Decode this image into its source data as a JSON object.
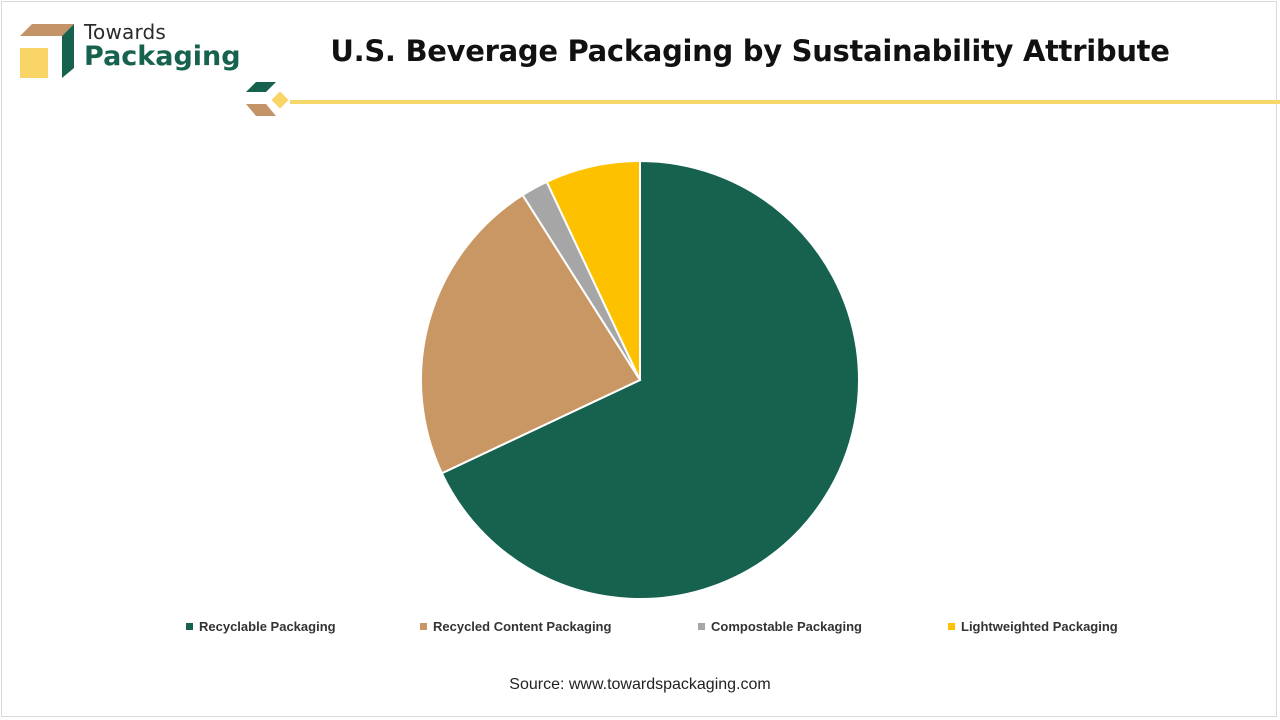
{
  "brand": {
    "line1": "Towards",
    "line2": "Packaging",
    "color_primary": "#17614f",
    "color_tan": "#c49468",
    "color_yellow": "#f9d466"
  },
  "title": "U.S. Beverage Packaging by Sustainability Attribute",
  "source": "Source: www.towardspackaging.com",
  "chart_data": {
    "type": "pie",
    "title": "U.S. Beverage Packaging by Sustainability Attribute",
    "start_angle_deg": 0,
    "direction": "clockwise",
    "slices": [
      {
        "label": "Recyclable Packaging",
        "value": 68,
        "color": "#17614f"
      },
      {
        "label": "Recycled Content Packaging",
        "value": 23,
        "color": "#c99763"
      },
      {
        "label": "Compostable Packaging",
        "value": 2,
        "color": "#a6a6a6"
      },
      {
        "label": "Lightweighted Packaging",
        "value": 7,
        "color": "#fec100"
      }
    ],
    "legend_position": "bottom"
  }
}
